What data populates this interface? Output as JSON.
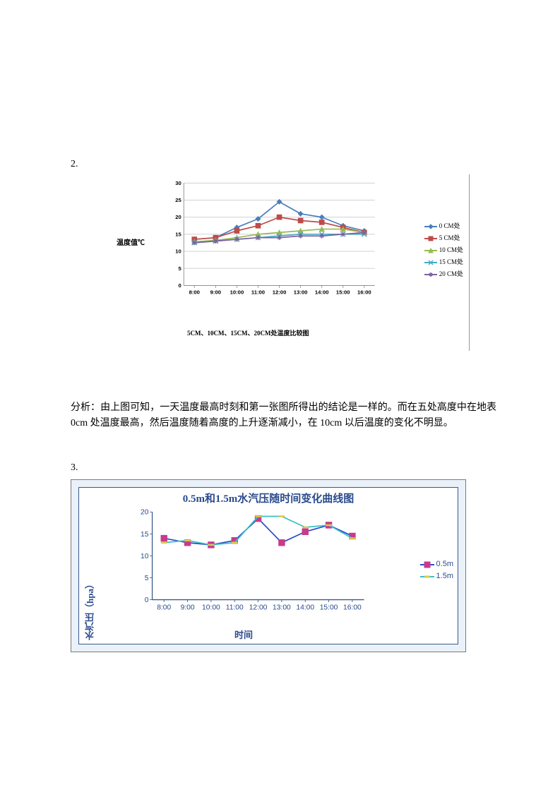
{
  "section2_num": "2.",
  "section3_num": "3.",
  "analysis_text": "分析：由上图可知，一天温度最高时刻和第一张图所得出的结论是一样的。而在五处高度中在地表 0cm 处温度最高，然后温度随着高度的上升逐渐减小，在 10cm 以后温度的变化不明显。",
  "chart1": {
    "type": "line",
    "ylabel": "温度值℃",
    "caption": "5CM、10CM、15CM、20CM处温度比较图",
    "x_ticks": [
      "8:00",
      "9:00",
      "10:00",
      "11:00",
      "12:00",
      "13:00",
      "14:00",
      "15:00",
      "16:00"
    ],
    "y_ticks": [
      0,
      5,
      10,
      15,
      20,
      25,
      30
    ],
    "ylim": [
      0,
      30
    ],
    "background_color": "#ffffff",
    "grid_color": "#cccccc",
    "axis_color": "#888888",
    "line_width": 2,
    "marker_size": 4,
    "series": [
      {
        "label": "0 CM处",
        "color": "#4a7ebb",
        "marker": "diamond",
        "values": [
          13.5,
          14.0,
          17.0,
          19.5,
          24.5,
          21.0,
          20.0,
          17.5,
          16.0
        ]
      },
      {
        "label": "5 CM处",
        "color": "#be4b48",
        "marker": "square",
        "values": [
          13.5,
          14.0,
          16.0,
          17.5,
          20.0,
          19.0,
          18.5,
          17.0,
          15.5
        ]
      },
      {
        "label": "10 CM处",
        "color": "#98b954",
        "marker": "triangle",
        "values": [
          12.8,
          13.2,
          14.0,
          15.0,
          15.5,
          16.0,
          16.5,
          16.5,
          15.5
        ]
      },
      {
        "label": "15 CM处",
        "color": "#46aac5",
        "marker": "x",
        "values": [
          12.5,
          13.0,
          13.5,
          14.0,
          14.5,
          15.0,
          15.0,
          15.0,
          15.0
        ]
      },
      {
        "label": "20 CM处",
        "color": "#7d60a0",
        "marker": "star",
        "values": [
          12.5,
          13.0,
          13.5,
          14.0,
          14.0,
          14.5,
          14.5,
          15.0,
          15.5
        ]
      }
    ],
    "legend_tick_fontsize": 9
  },
  "chart2": {
    "type": "line",
    "title": "0.5m和1.5m水汽压随时间变化曲线图",
    "ylabel": "水汽压（hpa）",
    "xlabel": "时间",
    "x_ticks": [
      "8:00",
      "9:00",
      "10:00",
      "11:00",
      "12:00",
      "13:00",
      "14:00",
      "15:00",
      "16:00"
    ],
    "y_ticks": [
      0,
      5,
      10,
      15,
      20
    ],
    "ylim": [
      0,
      20
    ],
    "background_color": "#ffffff",
    "panel_border_color": "#3a5a8a",
    "outer_bg_color": "#eaf1f8",
    "text_color": "#2a4b8d",
    "grid_color": "#3a5a8a",
    "line_width": 2,
    "marker_size": 5,
    "series": [
      {
        "label": "0.5m",
        "color": "#c73a8d",
        "line_color": "#2a4bc7",
        "marker": "square",
        "values": [
          14.0,
          13.0,
          12.5,
          13.5,
          18.5,
          13.0,
          15.5,
          17.0,
          14.5
        ]
      },
      {
        "label": "1.5m",
        "color": "#d8c94a",
        "line_color": "#3bbfc7",
        "marker": "dash",
        "values": [
          13.0,
          13.5,
          12.5,
          13.0,
          19.0,
          19.0,
          16.5,
          17.0,
          14.0
        ]
      }
    ],
    "title_fontsize": 15,
    "label_fontsize": 13,
    "tick_fontsize": 12
  }
}
